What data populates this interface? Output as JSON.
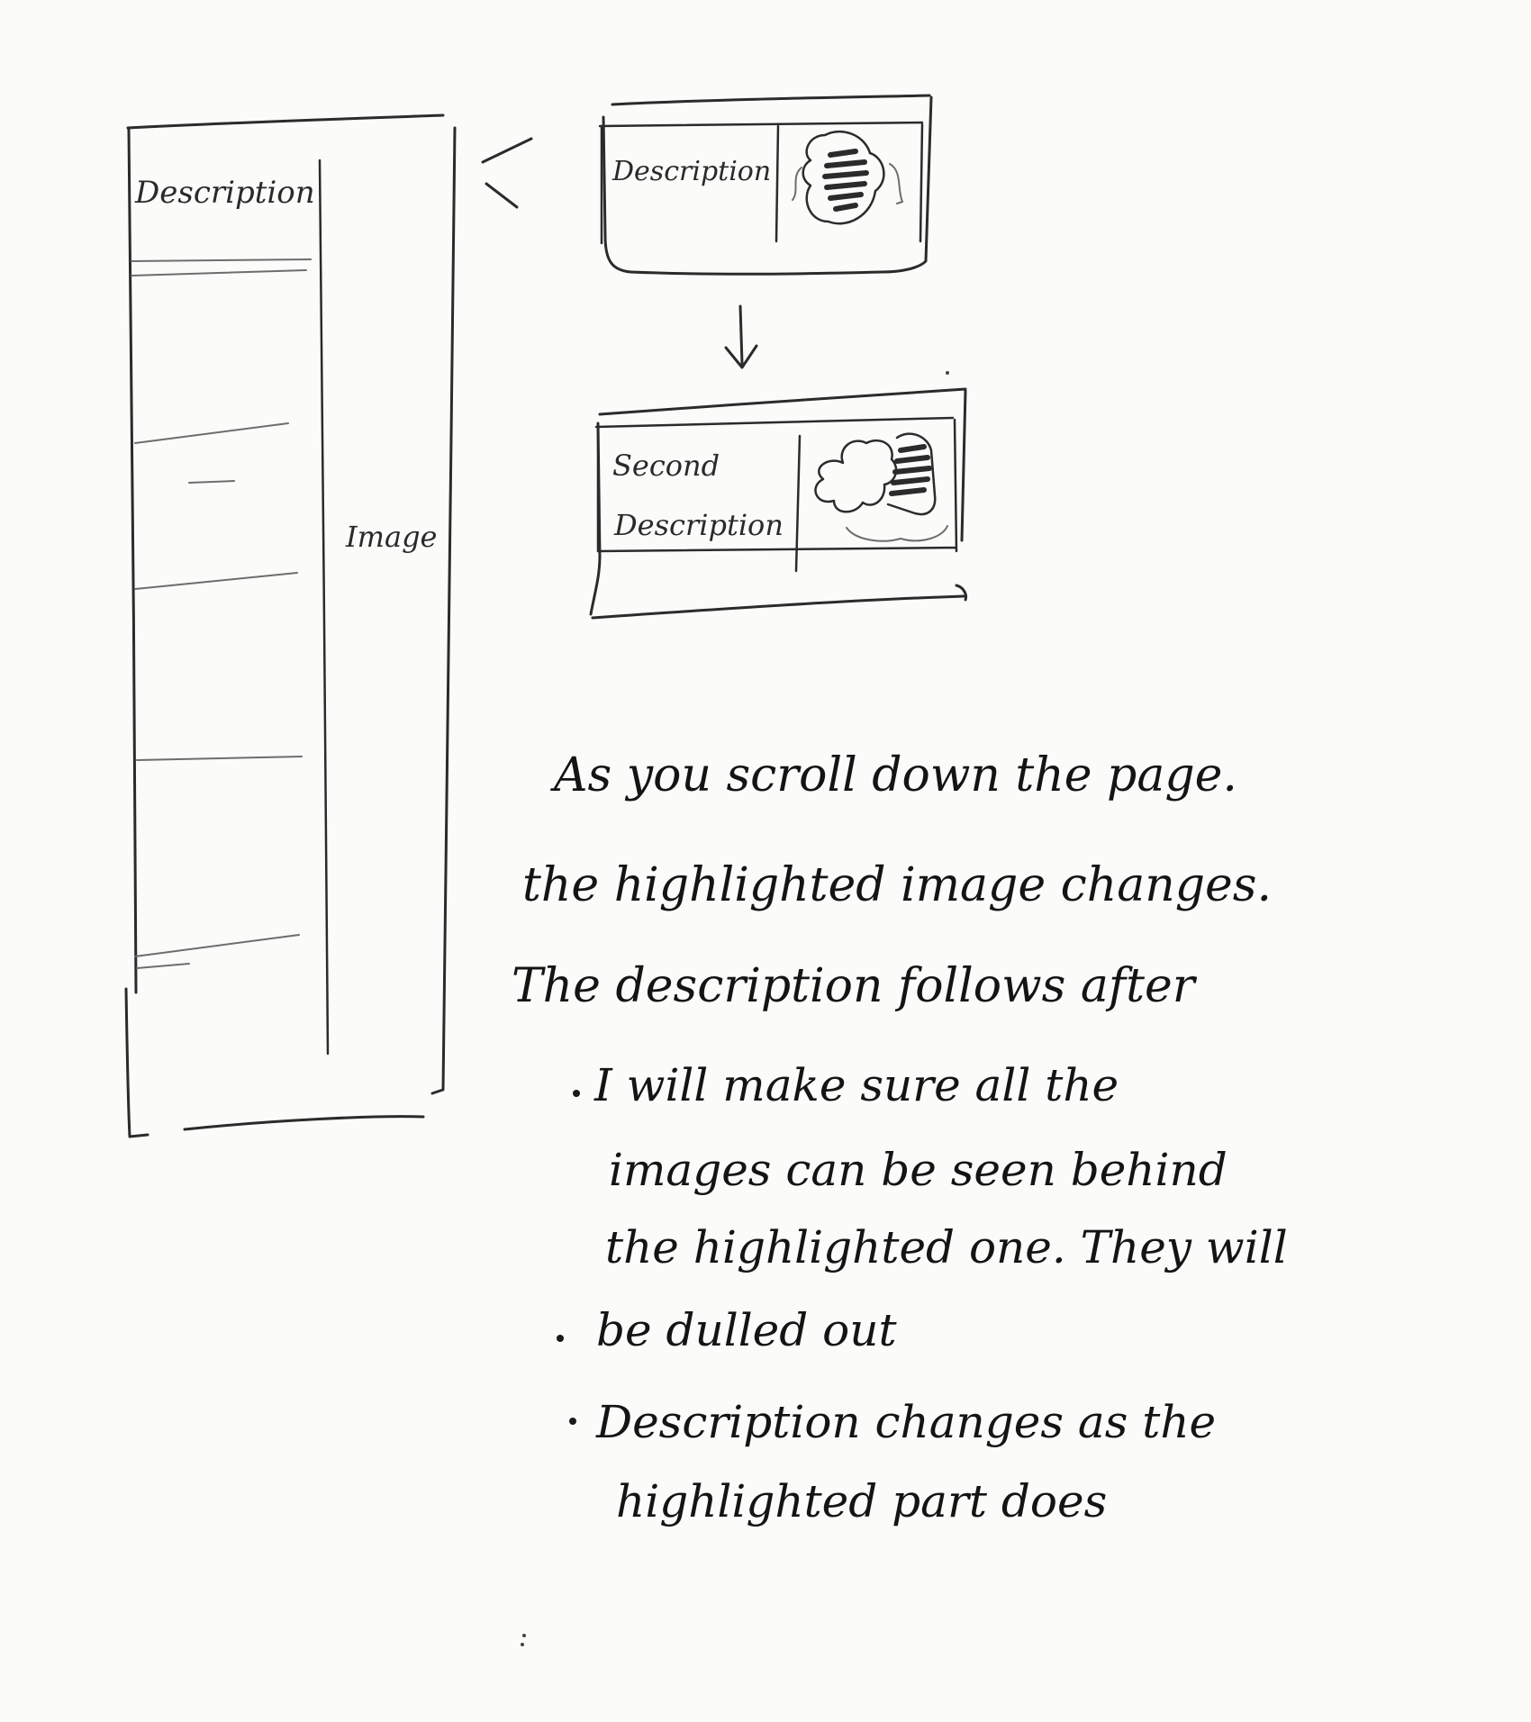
{
  "wireframe": {
    "description_label": "Description",
    "image_label": "Image"
  },
  "state_one": {
    "label": "Description"
  },
  "state_two": {
    "label_line1": "Second",
    "label_line2": "Description"
  },
  "notes": {
    "intro_line1": "As you scroll down the page.",
    "intro_line2": "the highlighted image changes.",
    "intro_line3": "The description follows after",
    "bullet1_line1": "I will make sure all the",
    "bullet1_line2": "images can be seen behind",
    "bullet1_line3": "the highlighted one. They will",
    "bullet1_line4": "be dulled out",
    "bullet2_line1": "Description changes as the",
    "bullet2_line2": "highlighted part does"
  },
  "colors": {
    "paper": "#fbfbfa",
    "ink": "#2b2b2b"
  }
}
